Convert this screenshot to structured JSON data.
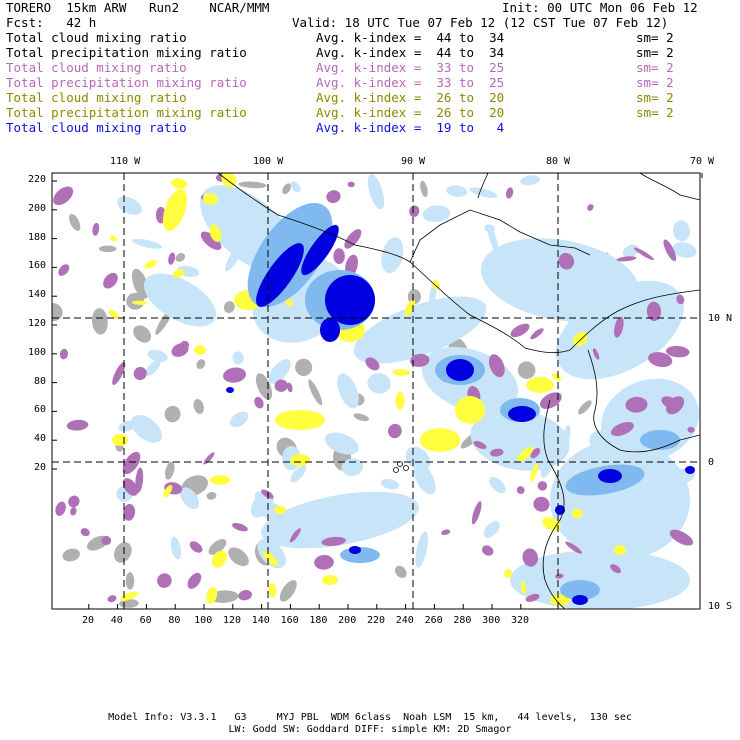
{
  "header": {
    "run_title": "TORERO  15km ARW   Run2    NCAR/MMM",
    "init": "Init: 00 UTC Mon 06 Feb 12",
    "fcst": "Fcst:   42 h",
    "valid": "Valid: 18 UTC Tue 07 Feb 12 (12 CST Tue 07 Feb 12)"
  },
  "fields": [
    {
      "name": "Total cloud mixing ratio",
      "stat": "Avg. k-index =  44 to  34",
      "sm": "sm= 2",
      "color": "#000000"
    },
    {
      "name": "Total precipitation mixing ratio",
      "stat": "Avg. k-index =  44 to  34",
      "sm": "sm= 2",
      "color": "#000000"
    },
    {
      "name": "Total cloud mixing ratio",
      "stat": "Avg. k-index =  33 to  25",
      "sm": "sm= 2",
      "color": "#b868b8"
    },
    {
      "name": "Total precipitation mixing ratio",
      "stat": "Avg. k-index =  33 to  25",
      "sm": "sm= 2",
      "color": "#b868b8"
    },
    {
      "name": "Total cloud mixing ratio",
      "stat": "Avg. k-index =  26 to  20",
      "sm": "sm= 2",
      "color": "#8a8a00"
    },
    {
      "name": "Total precipitation mixing ratio",
      "stat": "Avg. k-index =  26 to  20",
      "sm": "sm= 2",
      "color": "#8a8a00"
    },
    {
      "name": "Total cloud mixing ratio",
      "stat": "Avg. k-index =  19 to   4",
      "sm": "",
      "color": "#1010e0"
    }
  ],
  "map": {
    "lon_labels": [
      "110 W",
      "100 W",
      "90 W",
      "80 W",
      "70 W"
    ],
    "lat_labels": [
      "10 N",
      "0",
      "10 S"
    ],
    "y_ticks": [
      "220",
      "200",
      "180",
      "160",
      "140",
      "120",
      "100",
      "80",
      "60",
      "40",
      "20"
    ],
    "x_ticks": [
      "20",
      "40",
      "60",
      "80",
      "100",
      "120",
      "140",
      "160",
      "180",
      "200",
      "220",
      "240",
      "260",
      "280",
      "300",
      "320"
    ],
    "colors": {
      "gray": "#b0b0b0",
      "purple": "#b070b8",
      "yellow": "#ffff40",
      "light_blue": "#c8e4f8",
      "mid_blue": "#80b8f0",
      "dark_blue": "#0000e0",
      "coast": "#000000"
    }
  },
  "footer": {
    "line1": "Model Info: V3.3.1   G3     MYJ PBL  WDM 6class  Noah LSM  15 km,   44 levels,  130 sec",
    "line2": "LW: Godd SW: Goddard DIFF: simple KM: 2D Smagor"
  }
}
